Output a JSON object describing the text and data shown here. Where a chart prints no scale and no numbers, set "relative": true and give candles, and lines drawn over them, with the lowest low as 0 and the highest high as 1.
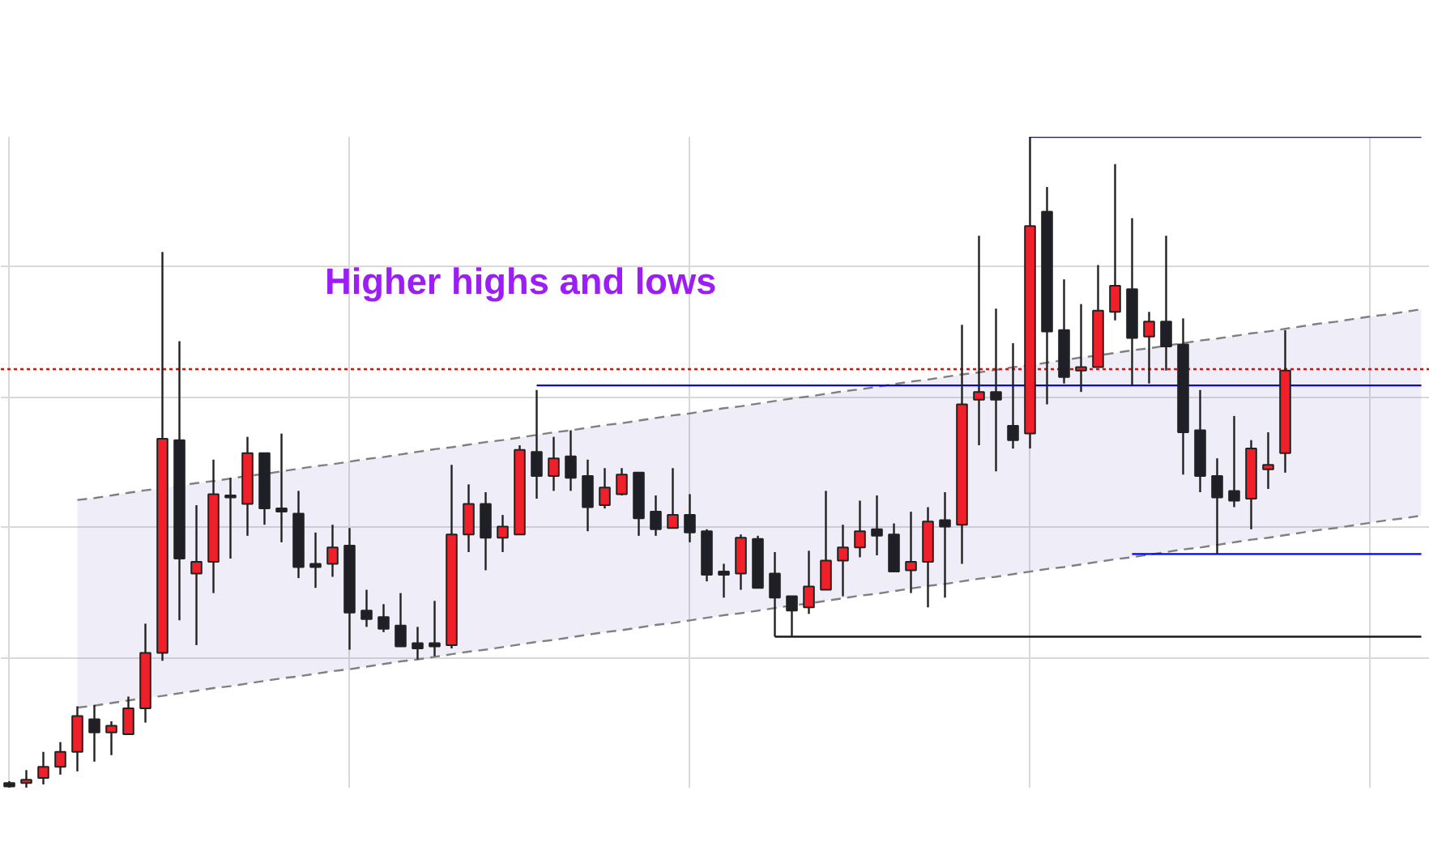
{
  "chart_data": {
    "type": "candlestick",
    "relative": true,
    "tick_labels": false,
    "grid": true,
    "annotations": [
      "Higher highs and lows"
    ],
    "categories": [
      null,
      null,
      null,
      null,
      null,
      null,
      null,
      null,
      null,
      null,
      null,
      null,
      null,
      null,
      null,
      null,
      null,
      null,
      null,
      null,
      null,
      null,
      null,
      null,
      null,
      null,
      null,
      null,
      null,
      null,
      null,
      null,
      null,
      null,
      null,
      null,
      null,
      null,
      null,
      null,
      null,
      null,
      null,
      null,
      null,
      null,
      null,
      null,
      null,
      null,
      null,
      null,
      null,
      null,
      null,
      null,
      null,
      null,
      null,
      null,
      null,
      null,
      null,
      null,
      null,
      null,
      null,
      null,
      null,
      null,
      null,
      null,
      null,
      null,
      null,
      null,
      null,
      null,
      null,
      null,
      null,
      null,
      null,
      null
    ],
    "ohlc": [
      [
        0.007,
        0.01,
        0.0,
        0.002
      ],
      [
        0.007,
        0.027,
        0.0,
        0.012
      ],
      [
        0.015,
        0.055,
        0.005,
        0.032
      ],
      [
        0.032,
        0.07,
        0.02,
        0.055
      ],
      [
        0.055,
        0.125,
        0.025,
        0.11
      ],
      [
        0.105,
        0.127,
        0.04,
        0.085
      ],
      [
        0.085,
        0.102,
        0.05,
        0.095
      ],
      [
        0.082,
        0.14,
        0.082,
        0.122
      ],
      [
        0.122,
        0.252,
        0.1,
        0.207
      ],
      [
        0.207,
        0.823,
        0.195,
        0.536
      ],
      [
        0.534,
        0.686,
        0.257,
        0.352
      ],
      [
        0.329,
        0.434,
        0.219,
        0.347
      ],
      [
        0.347,
        0.504,
        0.299,
        0.451
      ],
      [
        0.449,
        0.476,
        0.352,
        0.446
      ],
      [
        0.436,
        0.539,
        0.387,
        0.514
      ],
      [
        0.514,
        0.514,
        0.404,
        0.429
      ],
      [
        0.429,
        0.544,
        0.377,
        0.424
      ],
      [
        0.421,
        0.456,
        0.322,
        0.339
      ],
      [
        0.344,
        0.392,
        0.307,
        0.339
      ],
      [
        0.344,
        0.404,
        0.324,
        0.369
      ],
      [
        0.372,
        0.399,
        0.212,
        0.269
      ],
      [
        0.272,
        0.304,
        0.247,
        0.259
      ],
      [
        0.262,
        0.282,
        0.239,
        0.244
      ],
      [
        0.249,
        0.299,
        0.217,
        0.217
      ],
      [
        0.222,
        0.247,
        0.197,
        0.214
      ],
      [
        0.222,
        0.287,
        0.202,
        0.217
      ],
      [
        0.219,
        0.496,
        0.214,
        0.389
      ],
      [
        0.389,
        0.466,
        0.362,
        0.436
      ],
      [
        0.436,
        0.454,
        0.334,
        0.384
      ],
      [
        0.384,
        0.419,
        0.362,
        0.401
      ],
      [
        0.389,
        0.526,
        0.389,
        0.519
      ],
      [
        0.516,
        0.611,
        0.444,
        0.479
      ],
      [
        0.479,
        0.539,
        0.456,
        0.506
      ],
      [
        0.509,
        0.549,
        0.456,
        0.476
      ],
      [
        0.479,
        0.504,
        0.394,
        0.431
      ],
      [
        0.434,
        0.491,
        0.429,
        0.461
      ],
      [
        0.451,
        0.491,
        0.449,
        0.481
      ],
      [
        0.484,
        0.484,
        0.387,
        0.414
      ],
      [
        0.424,
        0.449,
        0.387,
        0.397
      ],
      [
        0.399,
        0.491,
        0.399,
        0.419
      ],
      [
        0.419,
        0.451,
        0.377,
        0.392
      ],
      [
        0.394,
        0.397,
        0.317,
        0.327
      ],
      [
        0.332,
        0.344,
        0.292,
        0.327
      ],
      [
        0.329,
        0.389,
        0.304,
        0.384
      ],
      [
        0.382,
        0.387,
        0.307,
        0.307
      ],
      [
        0.329,
        0.362,
        0.232,
        0.292
      ],
      [
        0.294,
        0.294,
        0.232,
        0.272
      ],
      [
        0.277,
        0.364,
        0.267,
        0.309
      ],
      [
        0.304,
        0.456,
        0.304,
        0.349
      ],
      [
        0.349,
        0.404,
        0.294,
        0.369
      ],
      [
        0.369,
        0.441,
        0.354,
        0.394
      ],
      [
        0.397,
        0.449,
        0.357,
        0.387
      ],
      [
        0.389,
        0.406,
        0.332,
        0.332
      ],
      [
        0.334,
        0.424,
        0.299,
        0.347
      ],
      [
        0.347,
        0.431,
        0.277,
        0.409
      ],
      [
        0.411,
        0.454,
        0.292,
        0.401
      ],
      [
        0.404,
        0.711,
        0.344,
        0.589
      ],
      [
        0.596,
        0.848,
        0.526,
        0.608
      ],
      [
        0.608,
        0.736,
        0.486,
        0.596
      ],
      [
        0.556,
        0.683,
        0.521,
        0.534
      ],
      [
        0.544,
        1.0,
        0.521,
        0.863
      ],
      [
        0.885,
        0.923,
        0.589,
        0.701
      ],
      [
        0.703,
        0.781,
        0.621,
        0.631
      ],
      [
        0.641,
        0.743,
        0.608,
        0.646
      ],
      [
        0.646,
        0.803,
        0.646,
        0.733
      ],
      [
        0.731,
        0.958,
        0.718,
        0.771
      ],
      [
        0.766,
        0.875,
        0.618,
        0.691
      ],
      [
        0.693,
        0.731,
        0.621,
        0.716
      ],
      [
        0.716,
        0.848,
        0.641,
        0.678
      ],
      [
        0.681,
        0.721,
        0.481,
        0.546
      ],
      [
        0.549,
        0.611,
        0.454,
        0.479
      ],
      [
        0.479,
        0.506,
        0.359,
        0.446
      ],
      [
        0.456,
        0.571,
        0.431,
        0.441
      ],
      [
        0.444,
        0.534,
        0.397,
        0.521
      ],
      [
        0.489,
        0.546,
        0.459,
        0.496
      ],
      [
        0.514,
        0.703,
        0.484,
        0.641
      ],
      null,
      null,
      null,
      null,
      null,
      null,
      null,
      null
    ],
    "ref_lines": [
      {
        "axis": "y",
        "value": 0.643,
        "color": "#ff0000",
        "line_style": "dotted"
      }
    ],
    "series": [
      {
        "type": "line",
        "values": [
          null,
          null,
          null,
          null,
          0.442,
          0.445,
          0.449,
          0.453,
          0.457,
          0.46,
          0.464,
          0.468,
          0.471,
          0.475,
          0.479,
          0.482,
          0.486,
          0.49,
          0.494,
          0.497,
          0.501,
          0.505,
          0.508,
          0.512,
          0.516,
          0.52,
          0.523,
          0.527,
          0.531,
          0.534,
          0.538,
          0.542,
          0.546,
          0.549,
          0.553,
          0.557,
          0.56,
          0.564,
          0.568,
          0.572,
          0.575,
          0.579,
          0.583,
          0.586,
          0.59,
          0.594,
          0.598,
          0.601,
          0.605,
          0.609,
          0.612,
          0.616,
          0.62,
          0.624,
          0.627,
          0.631,
          0.635,
          0.638,
          0.642,
          0.646,
          0.649,
          0.653,
          0.657,
          0.661,
          0.664,
          0.668,
          0.672,
          0.675,
          0.679,
          0.683,
          0.687,
          0.69,
          0.694,
          0.698,
          0.701,
          0.705,
          0.709,
          0.713,
          0.716,
          0.72,
          0.724,
          0.727,
          0.731,
          0.735
        ],
        "lower": [
          null,
          null,
          null,
          null,
          0.123,
          0.126,
          0.13,
          0.134,
          0.138,
          0.141,
          0.145,
          0.149,
          0.153,
          0.156,
          0.16,
          0.164,
          0.168,
          0.171,
          0.175,
          0.179,
          0.182,
          0.186,
          0.19,
          0.194,
          0.197,
          0.201,
          0.205,
          0.209,
          0.212,
          0.216,
          0.22,
          0.224,
          0.227,
          0.231,
          0.235,
          0.239,
          0.242,
          0.246,
          0.25,
          0.253,
          0.257,
          0.261,
          0.265,
          0.268,
          0.272,
          0.276,
          0.28,
          0.283,
          0.287,
          0.291,
          0.295,
          0.298,
          0.302,
          0.306,
          0.31,
          0.313,
          0.317,
          0.321,
          0.324,
          0.328,
          0.332,
          0.336,
          0.339,
          0.343,
          0.347,
          0.351,
          0.354,
          0.358,
          0.362,
          0.366,
          0.369,
          0.373,
          0.377,
          0.381,
          0.384,
          0.388,
          0.392,
          0.396,
          0.399,
          0.403,
          0.407,
          0.411,
          0.414,
          0.418
        ],
        "upper": [
          null,
          null,
          null,
          null,
          0.442,
          0.445,
          0.449,
          0.453,
          0.457,
          0.46,
          0.464,
          0.468,
          0.471,
          0.475,
          0.479,
          0.482,
          0.486,
          0.49,
          0.494,
          0.497,
          0.501,
          0.505,
          0.508,
          0.512,
          0.516,
          0.52,
          0.523,
          0.527,
          0.531,
          0.534,
          0.538,
          0.542,
          0.546,
          0.549,
          0.553,
          0.557,
          0.56,
          0.564,
          0.568,
          0.572,
          0.575,
          0.579,
          0.583,
          0.586,
          0.59,
          0.594,
          0.598,
          0.601,
          0.605,
          0.609,
          0.612,
          0.616,
          0.62,
          0.624,
          0.627,
          0.631,
          0.635,
          0.638,
          0.642,
          0.646,
          0.649,
          0.653,
          0.657,
          0.661,
          0.664,
          0.668,
          0.672,
          0.675,
          0.679,
          0.683,
          0.687,
          0.69,
          0.694,
          0.698,
          0.701,
          0.705,
          0.709,
          0.713,
          0.716,
          0.72,
          0.724,
          0.727,
          0.731,
          0.735
        ],
        "color": "#808080",
        "line_style": "dashed"
      },
      {
        "type": "line",
        "values": [
          null,
          null,
          null,
          null,
          0.123,
          0.126,
          0.13,
          0.134,
          0.138,
          0.141,
          0.145,
          0.149,
          0.153,
          0.156,
          0.16,
          0.164,
          0.168,
          0.171,
          0.175,
          0.179,
          0.182,
          0.186,
          0.19,
          0.194,
          0.197,
          0.201,
          0.205,
          0.209,
          0.212,
          0.216,
          0.22,
          0.224,
          0.227,
          0.231,
          0.235,
          0.239,
          0.242,
          0.246,
          0.25,
          0.253,
          0.257,
          0.261,
          0.265,
          0.268,
          0.272,
          0.276,
          0.28,
          0.283,
          0.287,
          0.291,
          0.295,
          0.298,
          0.302,
          0.306,
          0.31,
          0.313,
          0.317,
          0.321,
          0.324,
          0.328,
          0.332,
          0.336,
          0.339,
          0.343,
          0.347,
          0.351,
          0.354,
          0.358,
          0.362,
          0.366,
          0.369,
          0.373,
          0.377,
          0.381,
          0.384,
          0.388,
          0.392,
          0.396,
          0.399,
          0.403,
          0.407,
          0.411,
          0.414,
          0.418
        ],
        "color": "#808080",
        "line_style": "dashed"
      },
      {
        "type": "line",
        "values": [
          null,
          null,
          null,
          null,
          null,
          null,
          null,
          null,
          null,
          null,
          null,
          null,
          null,
          null,
          null,
          null,
          null,
          null,
          null,
          null,
          null,
          null,
          null,
          null,
          null,
          null,
          null,
          null,
          null,
          null,
          null,
          null,
          null,
          null,
          null,
          null,
          null,
          null,
          null,
          null,
          null,
          null,
          null,
          null,
          null,
          null,
          null,
          null,
          null,
          null,
          null,
          null,
          null,
          null,
          null,
          null,
          null,
          null,
          null,
          null,
          1.0,
          1.0,
          1.0,
          1.0,
          1.0,
          1.0,
          1.0,
          1.0,
          1.0,
          1.0,
          1.0,
          1.0,
          1.0,
          1.0,
          1.0,
          1.0,
          1.0,
          1.0,
          1.0,
          1.0,
          1.0,
          1.0,
          1.0,
          1.0
        ],
        "color": "#0000ff",
        "line_style": "solid"
      },
      {
        "type": "line",
        "values": [
          null,
          null,
          null,
          null,
          null,
          null,
          null,
          null,
          null,
          null,
          null,
          null,
          null,
          null,
          null,
          null,
          null,
          null,
          null,
          null,
          null,
          null,
          null,
          null,
          null,
          null,
          null,
          null,
          null,
          null,
          null,
          0.618,
          0.618,
          0.618,
          0.618,
          0.618,
          0.618,
          0.618,
          0.618,
          0.618,
          0.618,
          0.618,
          0.618,
          0.618,
          0.618,
          0.618,
          0.618,
          0.618,
          0.618,
          0.618,
          0.618,
          0.618,
          0.618,
          0.618,
          0.618,
          0.618,
          0.618,
          0.618,
          0.618,
          0.618,
          0.618,
          0.618,
          0.618,
          0.618,
          0.618,
          0.618,
          0.618,
          0.618,
          0.618,
          0.618,
          0.618,
          0.618,
          0.618,
          0.618,
          0.618,
          0.618,
          0.618,
          0.618,
          0.618,
          0.618,
          0.618,
          0.618,
          0.618,
          0.618
        ],
        "color": "#0000ff",
        "line_style": "solid"
      },
      {
        "type": "line",
        "values": [
          null,
          null,
          null,
          null,
          null,
          null,
          null,
          null,
          null,
          null,
          null,
          null,
          null,
          null,
          null,
          null,
          null,
          null,
          null,
          null,
          null,
          null,
          null,
          null,
          null,
          null,
          null,
          null,
          null,
          null,
          null,
          null,
          null,
          null,
          null,
          null,
          null,
          null,
          null,
          null,
          null,
          null,
          null,
          null,
          null,
          null,
          null,
          null,
          null,
          null,
          null,
          null,
          null,
          null,
          null,
          null,
          null,
          null,
          null,
          null,
          null,
          null,
          null,
          null,
          null,
          null,
          0.359,
          0.359,
          0.359,
          0.359,
          0.359,
          0.359,
          0.359,
          0.359,
          0.359,
          0.359,
          0.359,
          0.359,
          0.359,
          0.359,
          0.359,
          0.359,
          0.359,
          0.359
        ],
        "color": "#0000ff",
        "line_style": "solid"
      },
      {
        "type": "line",
        "values": [
          null,
          null,
          null,
          null,
          null,
          null,
          null,
          null,
          null,
          null,
          null,
          null,
          null,
          null,
          null,
          null,
          null,
          null,
          null,
          null,
          null,
          null,
          null,
          null,
          null,
          null,
          null,
          null,
          null,
          null,
          null,
          null,
          null,
          null,
          null,
          null,
          null,
          null,
          null,
          null,
          null,
          null,
          null,
          null,
          null,
          0.232,
          0.232,
          0.232,
          0.232,
          0.232,
          0.232,
          0.232,
          0.232,
          0.232,
          0.232,
          0.232,
          0.232,
          0.232,
          0.232,
          0.232,
          0.232,
          0.232,
          0.232,
          0.232,
          0.232,
          0.232,
          0.232,
          0.232,
          0.232,
          0.232,
          0.232,
          0.232,
          0.232,
          0.232,
          0.232,
          0.232,
          0.232,
          0.232,
          0.232,
          0.232,
          0.232,
          0.232,
          0.232,
          0.232
        ],
        "color": "#1a1a1a",
        "line_style": "solid"
      }
    ]
  }
}
